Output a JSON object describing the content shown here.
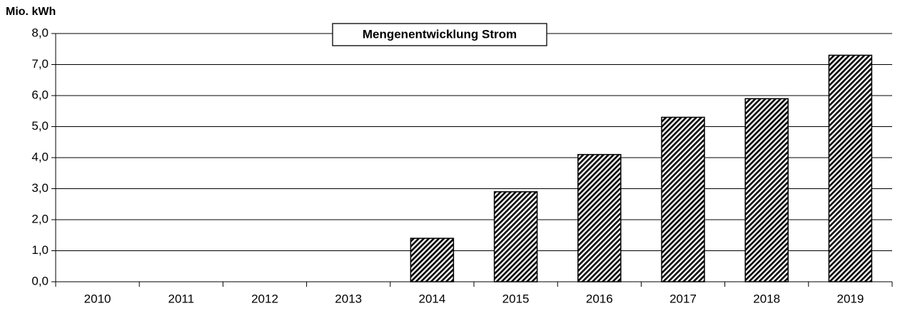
{
  "chart_data": {
    "type": "bar",
    "title": "Mengenentwicklung Strom",
    "y_label": "Mio.  kWh",
    "categories": [
      "2010",
      "2011",
      "2012",
      "2013",
      "2014",
      "2015",
      "2016",
      "2017",
      "2018",
      "2019"
    ],
    "values": [
      0,
      0,
      0,
      0,
      1.4,
      2.9,
      4.1,
      5.3,
      5.9,
      7.3
    ],
    "color": "#000000",
    "ylim": [
      0,
      8
    ],
    "yticks": [
      {
        "value": 0,
        "label": "0,0"
      },
      {
        "value": 1,
        "label": "1,0"
      },
      {
        "value": 2,
        "label": "2,0"
      },
      {
        "value": 3,
        "label": "3,0"
      },
      {
        "value": 4,
        "label": "4,0"
      },
      {
        "value": 5,
        "label": "5,0"
      },
      {
        "value": 6,
        "label": "6,0"
      },
      {
        "value": 7,
        "label": "7,0"
      },
      {
        "value": 8,
        "label": "8,0"
      }
    ],
    "grid": true
  }
}
